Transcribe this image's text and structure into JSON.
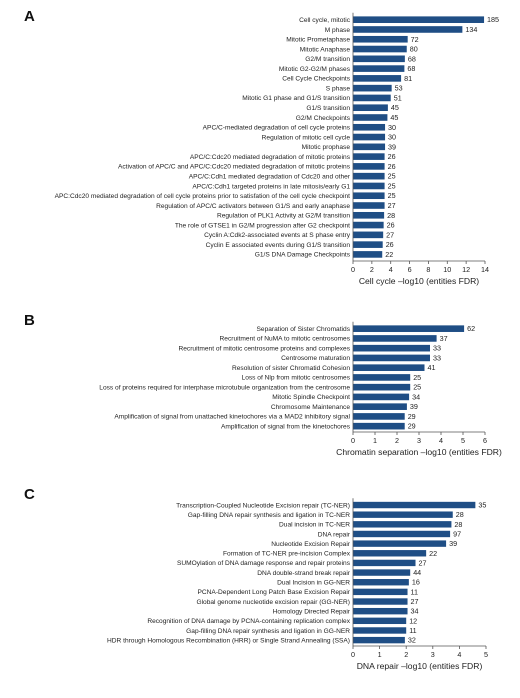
{
  "chart_data": [
    {
      "type": "bar",
      "orientation": "horizontal",
      "panel_label": "A",
      "xlabel": "Cell cycle –log10 (entities FDR)",
      "xlim": [
        0,
        14
      ],
      "xticks": [
        0,
        2,
        4,
        6,
        8,
        10,
        12,
        14
      ],
      "categories": [
        "Cell cycle, mitotic",
        "M phase",
        "Mitotic Prometaphase",
        "Mitotic Anaphase",
        "G2/M transition",
        "Mitotic G2-G2/M phases",
        "Cell Cycle Checkpoints",
        "S phase",
        "Mitotic G1 phase and G1/S transition",
        "G1/S transition",
        "G2/M Checkpoints",
        "APC/C-mediated degradation of cell cycle proteins",
        "Regulation of mitotic cell cycle",
        "Mitotic prophase",
        "APC/C:Cdc20 mediated degradation of mitotic proteins",
        "Activation of APC/C and APC/C:Cdc20 mediated degradation of mitotic proteins",
        "APC/C:Cdh1 mediated degradation of Cdc20 and other",
        "APC/C:Cdh1 targeted proteins in late mitosis/early G1",
        "APC:Cdc20 mediated degradation of cell cycle proteins prior to satisfation of the cell cycle checkpoint",
        "Regulation of APC/C activators between G1/S and early anaphase",
        "Regulation of PLK1 Activity at G2/M transition",
        "The role of GTSE1 in G2/M progression after G2 checkpoint",
        "Cyclin A:Cdk2-associated events at S phase entry",
        "Cyclin E associated events during G1/S transition",
        "G1/S DNA Damage Checkpoints"
      ],
      "values": [
        13.9,
        11.6,
        5.8,
        5.7,
        5.5,
        5.45,
        5.1,
        4.1,
        4.0,
        3.7,
        3.65,
        3.4,
        3.4,
        3.4,
        3.35,
        3.35,
        3.35,
        3.35,
        3.35,
        3.35,
        3.3,
        3.25,
        3.2,
        3.15,
        3.1
      ],
      "labels": [
        "185",
        "134",
        "72",
        "80",
        "68",
        "68",
        "81",
        "53",
        "51",
        "45",
        "45",
        "30",
        "30",
        "39",
        "26",
        "26",
        "25",
        "25",
        "25",
        "27",
        "28",
        "26",
        "27",
        "26",
        "22"
      ]
    },
    {
      "type": "bar",
      "orientation": "horizontal",
      "panel_label": "B",
      "xlabel": "Chromatin separation –log10 (entities FDR)",
      "xlim": [
        0,
        6
      ],
      "xticks": [
        0,
        1,
        2,
        3,
        4,
        5,
        6
      ],
      "categories": [
        "Separation of Sister Chromatids",
        "Recruitment of NuMA to mitotic centrosomes",
        "Recruitment of mitotic centrosome proteins and complexes",
        "Centrosome maturation",
        "Resolution of sister Chromatid Cohesion",
        "Loss of Nlp from mitotic centrosomes",
        "Loss of proteins required for interphase microtubule organization from the centrosome",
        "Mitotic Spindle Checkpoint",
        "Chromosome Maintenance",
        "Amplification of signal from unattached kinetochores via a MAD2 inhibitory signal",
        "Amplification of signal from the kinetochores"
      ],
      "values": [
        5.05,
        3.8,
        3.5,
        3.5,
        3.25,
        2.6,
        2.6,
        2.55,
        2.45,
        2.35,
        2.35
      ],
      "labels": [
        "62",
        "37",
        "33",
        "33",
        "41",
        "25",
        "25",
        "34",
        "39",
        "29",
        "29"
      ]
    },
    {
      "type": "bar",
      "orientation": "horizontal",
      "panel_label": "C",
      "xlabel": "DNA repair –log10 (entities FDR)",
      "xlim": [
        0,
        5
      ],
      "xticks": [
        0,
        1,
        2,
        3,
        4,
        5
      ],
      "categories": [
        "Transcription-Coupled Nucleotide Excision repair (TC-NER)",
        "Gap-filling DNA repair synthesis and ligation in TC-NER",
        "Dual incision in TC-NER",
        "DNA repair",
        "Nucleotide Excision Repair",
        "Formation of TC-NER pre-incision Complex",
        "SUMOylation of DNA damage response and repair proteins",
        "DNA double-strand break repair",
        "Dual Incision in GG-NER",
        "PCNA-Dependent Long Patch Base Excision Repair",
        "Global genome nucleotide excision repair (GG-NER)",
        "Homology Directed Repair",
        "Recognition of DNA damage by PCNA-containing replication complex",
        "Gap-filling DNA repair synthesis and ligation in GG-NER",
        "HDR through Homologous Recombination (HRR) or Single Strand Annealing (SSA)"
      ],
      "values": [
        4.6,
        3.75,
        3.7,
        3.65,
        3.5,
        2.75,
        2.35,
        2.15,
        2.1,
        2.05,
        2.05,
        2.05,
        2.0,
        2.0,
        1.95
      ],
      "labels": [
        "35",
        "28",
        "28",
        "97",
        "39",
        "22",
        "27",
        "44",
        "16",
        "11",
        "27",
        "34",
        "12",
        "11",
        "32"
      ]
    }
  ]
}
